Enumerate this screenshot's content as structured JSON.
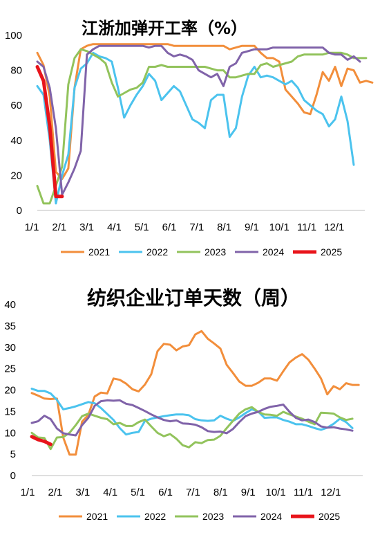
{
  "chart_data": [
    {
      "type": "line",
      "title": "江浙加弹开工率（%）",
      "xlabel": "",
      "ylabel": "",
      "ylim": [
        0,
        100
      ],
      "yticks": [
        "0",
        "20",
        "40",
        "60",
        "80",
        "100"
      ],
      "xticks": [
        "1/1",
        "2/1",
        "3/1",
        "4/1",
        "5/1",
        "6/1",
        "7/1",
        "8/1",
        "9/1",
        "10/1",
        "11/1",
        "12/1"
      ],
      "x_unit": "week",
      "grid": false,
      "legend_position": "bottom",
      "series": [
        {
          "name": "2021",
          "color": "#F28E3B",
          "values": [
            90,
            83,
            65,
            22,
            18,
            24,
            70,
            92,
            94,
            95,
            95,
            95,
            95,
            95,
            95,
            95,
            95,
            95,
            95,
            95,
            95,
            95,
            94,
            94,
            94,
            94,
            94,
            94,
            94,
            94,
            94,
            92,
            93,
            94,
            94,
            94,
            90,
            87,
            87,
            85,
            69,
            65,
            61,
            56,
            55,
            66,
            79,
            74,
            82,
            71,
            81,
            80,
            73,
            74,
            73
          ]
        },
        {
          "name": "2022",
          "color": "#4BC3EE",
          "values": [
            71,
            66,
            40,
            4,
            20,
            32,
            70,
            81,
            84,
            90,
            88,
            87,
            85,
            70,
            53,
            60,
            66,
            71,
            78,
            74,
            63,
            67,
            71,
            68,
            60,
            52,
            50,
            47,
            63,
            66,
            66,
            42,
            47,
            65,
            77,
            82,
            76,
            77,
            76,
            74,
            72,
            74,
            70,
            63,
            60,
            57,
            55,
            48,
            52,
            65,
            51,
            26
          ]
        },
        {
          "name": "2023",
          "color": "#92C35C",
          "values": [
            14,
            4,
            4,
            14,
            25,
            72,
            87,
            92,
            91,
            89,
            87,
            84,
            73,
            65,
            67,
            69,
            70,
            73,
            82,
            82,
            83,
            82,
            82,
            82,
            82,
            82,
            82,
            82,
            81,
            80,
            80,
            76,
            76,
            77,
            78,
            78,
            83,
            84,
            82,
            83,
            84,
            85,
            88,
            89,
            89,
            89,
            89,
            90,
            90,
            90,
            89,
            87,
            87,
            87
          ]
        },
        {
          "name": "2024",
          "color": "#8063A9",
          "values": [
            85,
            82,
            70,
            47,
            9,
            16,
            24,
            34,
            89,
            92,
            94,
            94,
            94,
            94,
            94,
            94,
            94,
            94,
            93,
            94,
            94,
            90,
            88,
            89,
            88,
            86,
            80,
            78,
            76,
            78,
            71,
            82,
            84,
            90,
            91,
            92,
            92,
            92,
            93,
            93,
            93,
            93,
            93,
            93,
            93,
            93,
            93,
            90,
            89,
            89,
            86,
            88,
            85
          ]
        },
        {
          "name": "2025",
          "color": "#E8141B",
          "values": [
            82,
            74,
            48,
            8,
            8
          ]
        }
      ]
    },
    {
      "type": "line",
      "title": "纺织企业订单天数（周）",
      "xlabel": "",
      "ylabel": "",
      "ylim": [
        0,
        40
      ],
      "yticks": [
        "0",
        "5",
        "10",
        "15",
        "20",
        "25",
        "30",
        "35",
        "40"
      ],
      "xticks": [
        "1/1",
        "2/1",
        "3/1",
        "4/1",
        "5/1",
        "6/1",
        "7/1",
        "8/1",
        "9/1",
        "10/1",
        "11/1",
        "12/1"
      ],
      "x_unit": "week",
      "grid": false,
      "legend_position": "bottom",
      "series": [
        {
          "name": "2021",
          "color": "#F28E3B",
          "values": [
            19.3,
            18.7,
            18.0,
            17.9,
            18.0,
            8.9,
            4.9,
            4.9,
            12.6,
            14.2,
            18.5,
            19.4,
            19.2,
            22.7,
            22.4,
            21.5,
            20.2,
            19.7,
            21.3,
            23.7,
            29.1,
            30.8,
            30.6,
            29.3,
            30.2,
            30.5,
            33.0,
            33.8,
            32.0,
            30.9,
            29.7,
            25.9,
            24.0,
            22.0,
            21.0,
            21.0,
            21.7,
            22.7,
            22.7,
            22.2,
            24.4,
            26.5,
            27.6,
            28.4,
            27.1,
            25.0,
            22.7,
            19.0,
            20.9,
            20.2,
            21.6,
            21.2,
            21.2
          ]
        },
        {
          "name": "2022",
          "color": "#4BC3EE",
          "values": [
            20.3,
            19.8,
            19.8,
            19.2,
            17.7,
            15.5,
            15.8,
            16.2,
            16.7,
            17.2,
            16.9,
            15.8,
            14.4,
            13.0,
            11.1,
            9.6,
            10.0,
            10.2,
            12.8,
            13.3,
            13.6,
            13.9,
            14.1,
            14.3,
            14.3,
            14.1,
            13.2,
            12.9,
            12.8,
            12.9,
            14.0,
            13.3,
            12.8,
            13.6,
            14.6,
            15.5,
            15.0,
            13.5,
            13.6,
            13.6,
            13.0,
            12.6,
            12.0,
            12.0,
            11.6,
            11.1,
            10.7,
            11.2,
            12.1,
            13.3,
            12.5,
            11.1
          ]
        },
        {
          "name": "2023",
          "color": "#92C35C",
          "values": [
            10.0,
            8.9,
            8.8,
            6.2,
            8.9,
            9.0,
            10.0,
            11.8,
            13.9,
            14.5,
            14.0,
            13.5,
            13.2,
            12.0,
            12.3,
            11.6,
            11.6,
            12.5,
            13.1,
            11.5,
            10.0,
            9.2,
            9.7,
            8.6,
            7.1,
            6.6,
            7.8,
            7.6,
            8.3,
            8.4,
            9.3,
            11.1,
            12.8,
            14.5,
            15.5,
            16.0,
            14.9,
            14.3,
            14.2,
            14.0,
            14.9,
            14.3,
            13.8,
            13.3,
            12.6,
            12.0,
            14.7,
            14.6,
            14.5,
            13.6,
            13.0,
            13.3
          ]
        },
        {
          "name": "2024",
          "color": "#8063A9",
          "values": [
            12.3,
            12.7,
            14.0,
            13.2,
            11.0,
            9.9,
            9.6,
            9.4,
            11.8,
            13.5,
            16.3,
            17.4,
            17.6,
            17.5,
            17.6,
            16.8,
            16.5,
            15.8,
            15.1,
            14.3,
            13.6,
            13.0,
            12.7,
            12.9,
            12.2,
            12.1,
            11.9,
            11.3,
            10.4,
            10.2,
            10.3,
            9.9,
            10.9,
            12.5,
            13.9,
            14.5,
            14.9,
            15.6,
            16.1,
            16.3,
            16.6,
            14.9,
            13.5,
            12.9,
            13.1,
            12.5,
            11.5,
            11.2,
            11.3,
            11.0,
            10.8,
            10.5
          ]
        },
        {
          "name": "2025",
          "color": "#E8141B",
          "values": [
            9.1,
            8.4,
            8.0,
            7.3
          ]
        }
      ]
    }
  ]
}
